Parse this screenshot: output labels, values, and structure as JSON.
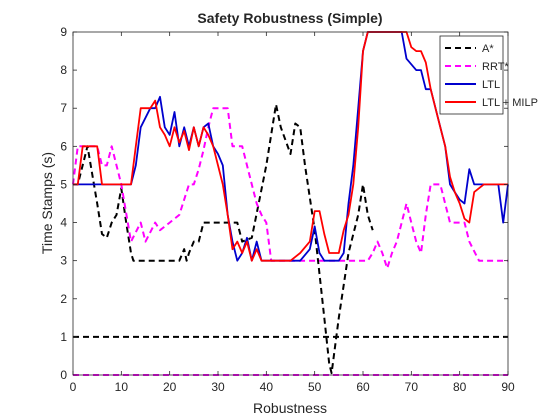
{
  "chart_data": {
    "type": "line",
    "title": "Safety Robustness (Simple)",
    "xlabel": "Robustness",
    "ylabel": "Time Stamps (s)",
    "xlim": [
      0,
      90
    ],
    "ylim": [
      0,
      9
    ],
    "xticks": [
      "0",
      "10",
      "20",
      "30",
      "40",
      "50",
      "60",
      "70",
      "80",
      "90"
    ],
    "yticks": [
      "0",
      "1",
      "2",
      "3",
      "4",
      "5",
      "6",
      "7",
      "8",
      "9"
    ],
    "grid": false,
    "legend_position": "top-right",
    "series": [
      {
        "name": "A*",
        "color": "#000000",
        "dash": "dashed",
        "x": [
          0,
          1,
          3,
          5,
          6,
          7,
          8,
          9,
          10,
          11,
          12,
          12.5,
          14,
          18,
          22,
          23,
          23.5,
          24,
          25,
          26,
          27,
          31,
          34,
          35,
          37,
          40,
          42,
          43,
          45,
          46,
          47,
          48,
          50,
          52,
          53,
          53.5,
          55,
          57,
          59,
          60,
          61,
          62
        ],
        "y": [
          5,
          5,
          6,
          4.5,
          3.7,
          3.6,
          4,
          4.2,
          4.9,
          4,
          3.2,
          3,
          3,
          3,
          3,
          3.3,
          3,
          3.2,
          3.5,
          3.5,
          4,
          4,
          4,
          3.5,
          3.6,
          5.5,
          7.1,
          6.5,
          5.8,
          6.6,
          6.5,
          5.5,
          3.8,
          1.5,
          0.3,
          0.05,
          1.5,
          3.2,
          4.2,
          5,
          4.2,
          3.8
        ]
      },
      {
        "name": "",
        "color": "#000000",
        "dash": "dashed",
        "x": [
          0,
          90
        ],
        "y": [
          1,
          1
        ]
      },
      {
        "name": "RRT*",
        "color": "#ff00ff",
        "dash": "dashed",
        "x": [
          0,
          1,
          3,
          5,
          6,
          7,
          8,
          10,
          12,
          14,
          15,
          17,
          18,
          20,
          22,
          24,
          25,
          26,
          27,
          28,
          29,
          30,
          31,
          32,
          33,
          35,
          36,
          37,
          38,
          39,
          40,
          41,
          43,
          45,
          48,
          50,
          52,
          54,
          56,
          58,
          60,
          61,
          62,
          63,
          64,
          65,
          66,
          67,
          68,
          69,
          70,
          71,
          72,
          73,
          74,
          76,
          78,
          80,
          81,
          82,
          84,
          86,
          88,
          90
        ],
        "y": [
          5,
          6,
          6,
          6,
          5.5,
          5.5,
          6,
          5,
          3.5,
          4,
          3.5,
          4,
          3.8,
          4,
          4.2,
          5,
          5,
          5.4,
          5.9,
          6.5,
          7,
          7,
          7,
          7,
          6,
          6,
          5.5,
          5,
          4.5,
          4.2,
          4,
          3,
          3,
          3,
          3,
          3,
          3,
          3,
          3,
          3,
          3,
          3,
          3.2,
          3.5,
          3.2,
          2.8,
          3.2,
          3.5,
          4,
          4.5,
          4,
          3.5,
          3.2,
          4.2,
          5,
          5,
          4,
          4,
          4,
          3.5,
          3,
          3,
          3,
          3
        ]
      },
      {
        "name": "",
        "color": "#ff00ff",
        "dash": "dashed",
        "x": [
          0,
          90
        ],
        "y": [
          0,
          0
        ]
      },
      {
        "name": "LTL",
        "color": "#0000cd",
        "dash": "solid",
        "x": [
          0,
          2,
          5,
          6,
          8,
          12,
          13,
          14,
          16,
          17,
          18,
          19,
          20,
          21,
          22,
          23,
          24,
          25,
          26,
          27,
          28,
          29,
          30,
          31,
          32,
          33,
          34,
          35,
          36,
          37,
          38,
          39,
          40,
          41,
          43,
          45,
          47,
          49,
          50,
          51,
          52,
          53,
          55,
          56,
          57,
          58,
          59,
          60,
          61,
          62,
          64,
          67,
          68,
          69,
          71,
          72,
          73,
          74,
          75,
          77,
          78,
          79,
          80,
          81,
          82,
          83,
          84,
          85,
          86,
          87,
          88,
          89,
          90
        ],
        "y": [
          5,
          5,
          5,
          5,
          5,
          5,
          5.5,
          6.5,
          7,
          7,
          7.3,
          6.5,
          6.3,
          6.9,
          6,
          6.5,
          6,
          6.5,
          6,
          6.5,
          6.6,
          6,
          5.8,
          5.5,
          4.2,
          3.5,
          3,
          3.2,
          3.6,
          3,
          3.5,
          3,
          3,
          3,
          3,
          3,
          3,
          3.3,
          3.9,
          3.2,
          3,
          3,
          3,
          3.2,
          4.5,
          5.5,
          7,
          8.5,
          9,
          9,
          9,
          9,
          9,
          8.3,
          8,
          8,
          7.5,
          7.5,
          7,
          6,
          5,
          4.8,
          4.6,
          4.5,
          5.4,
          5,
          5,
          5,
          5,
          5,
          5,
          4,
          5
        ]
      },
      {
        "name": "LTL + MILP",
        "color": "#ff0000",
        "dash": "solid",
        "x": [
          0,
          1,
          2,
          4,
          5,
          6,
          8,
          10,
          12,
          13,
          14,
          15,
          16,
          17,
          18,
          19,
          20,
          21,
          22,
          23,
          24,
          25,
          26,
          27,
          28,
          29,
          30,
          31,
          32,
          33,
          34,
          35,
          36,
          37,
          38,
          39,
          40,
          41,
          43,
          45,
          47,
          49,
          50,
          51,
          52,
          53,
          55,
          56,
          57,
          58,
          59,
          60,
          61,
          62,
          64,
          67,
          68,
          69,
          70,
          71,
          72,
          73,
          74,
          75,
          76,
          77,
          78,
          79,
          80,
          81,
          82,
          83,
          85,
          87,
          88,
          89,
          90
        ],
        "y": [
          5,
          5,
          6,
          6,
          6,
          5,
          5,
          5,
          5,
          6,
          7,
          7,
          7,
          7.2,
          6.5,
          6.3,
          6,
          6.5,
          6.1,
          6.4,
          5.9,
          6.5,
          6,
          6.5,
          6.3,
          6,
          5.5,
          5,
          4.2,
          3.3,
          3.5,
          3.2,
          3.5,
          3,
          3.3,
          3,
          3,
          3,
          3,
          3,
          3.2,
          3.5,
          4.3,
          4.3,
          3.7,
          3.2,
          3.2,
          3.8,
          4.2,
          5,
          6.5,
          8.5,
          9,
          9,
          9,
          9,
          9,
          9,
          8.6,
          8.5,
          8.5,
          8.2,
          7.5,
          7,
          6.5,
          6,
          5.2,
          4.8,
          4.5,
          4.1,
          4,
          4.8,
          5,
          5,
          5,
          5,
          5
        ]
      }
    ]
  }
}
